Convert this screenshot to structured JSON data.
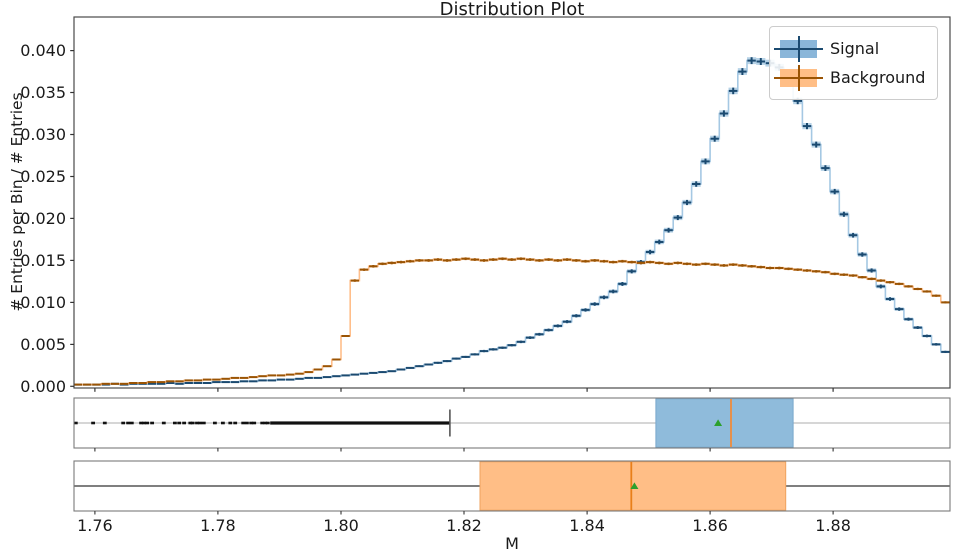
{
  "figure": {
    "title": "Distribution Plot",
    "xlabel": "M",
    "ylabel": "# Entries per Bin / # Entries"
  },
  "legend": {
    "items": [
      {
        "label": "Signal",
        "band_color": "#8ab6d9",
        "marker_color": "#1b4a70"
      },
      {
        "label": "Background",
        "band_color": "#ffbe86",
        "marker_color": "#9a5404"
      }
    ]
  },
  "style": {
    "spine_color": "#4a4a4a",
    "box_axes_border": "#7a7a7a",
    "tick_color": "#333333",
    "text_color": "#1a1a1a",
    "flier_color": "#111111",
    "cap_color": "#555555",
    "legend_border": "#cccccc"
  },
  "chart_data": [
    {
      "type": "histogram",
      "title": "Distribution Plot",
      "xlabel": "M",
      "ylabel": "# Entries per Bin / # Entries",
      "xlim": [
        1.7566,
        1.899
      ],
      "ylim": [
        -0.0002,
        0.044
      ],
      "grid": false,
      "legend_position": "upper right",
      "xticks": [
        1.76,
        1.78,
        1.8,
        1.82,
        1.84,
        1.86,
        1.88
      ],
      "xtick_labels": [
        "1.76",
        "1.78",
        "1.80",
        "1.82",
        "1.84",
        "1.86",
        "1.88"
      ],
      "yticks": [
        0.0,
        0.005,
        0.01,
        0.015,
        0.02,
        0.025,
        0.03,
        0.035,
        0.04
      ],
      "ytick_labels": [
        "0.000",
        "0.005",
        "0.010",
        "0.015",
        "0.020",
        "0.025",
        "0.030",
        "0.035",
        "0.040"
      ],
      "bin_start": 1.7565,
      "bin_width": 0.0015,
      "value_unit": 0.0001,
      "series": [
        {
          "name": "Signal",
          "line_color": "#a5c8e3",
          "band_color": "#1f77b4",
          "band_alpha": 0.32,
          "marker_color": "#1b4a70",
          "err_scale": 0.0021,
          "values": [
            2,
            2,
            2,
            2,
            3,
            2,
            3,
            3,
            3,
            3,
            4,
            3,
            4,
            4,
            4,
            5,
            5,
            5,
            6,
            6,
            7,
            7,
            8,
            8,
            9,
            10,
            10,
            11,
            12,
            13,
            14,
            15,
            16,
            17,
            18,
            20,
            22,
            24,
            26,
            28,
            30,
            33,
            35,
            38,
            42,
            44,
            46,
            49,
            53,
            58,
            62,
            67,
            72,
            77,
            84,
            91,
            98,
            106,
            113,
            122,
            137,
            148,
            160,
            172,
            186,
            201,
            219,
            241,
            268,
            295,
            325,
            352,
            375,
            388,
            387,
            385,
            380,
            362,
            340,
            310,
            288,
            260,
            232,
            205,
            180,
            157,
            138,
            119,
            104,
            92,
            80,
            70,
            60,
            50,
            41
          ]
        },
        {
          "name": "Background",
          "line_color": "#ffbe8a",
          "band_color": "#ff7f0e",
          "band_alpha": 0.3,
          "marker_color": "#9a5404",
          "err_scale": 0.0013,
          "values": [
            2,
            2,
            2,
            3,
            3,
            3,
            4,
            4,
            5,
            5,
            6,
            6,
            7,
            7,
            8,
            8,
            9,
            10,
            10,
            11,
            12,
            13,
            13,
            14,
            15,
            17,
            20,
            24,
            32,
            60,
            126,
            139,
            143,
            146,
            147,
            148,
            149,
            150,
            150,
            151,
            150,
            151,
            152,
            151,
            150,
            151,
            152,
            151,
            152,
            151,
            150,
            151,
            150,
            151,
            150,
            149,
            150,
            149,
            148,
            149,
            148,
            147,
            148,
            147,
            146,
            147,
            146,
            145,
            146,
            145,
            144,
            145,
            144,
            143,
            142,
            141,
            141,
            140,
            139,
            138,
            137,
            136,
            134,
            133,
            132,
            130,
            128,
            126,
            124,
            122,
            119,
            116,
            113,
            108,
            100
          ]
        }
      ]
    },
    {
      "type": "boxplot",
      "series_name": "Signal",
      "q1": 1.8512,
      "median": 1.8634,
      "q3": 1.8735,
      "mean": 1.8613,
      "whisker_low": 1.8177,
      "whisker_high_clipped": true,
      "whisker_color": "#c9c9c9",
      "box_fill": "#8fbbdb",
      "box_edge": "#79a8cc",
      "median_color": "#f08c3c",
      "mean_color": "#2ca02c",
      "fliers": [
        1.7569,
        1.7597,
        1.7616,
        1.7646,
        1.7654,
        1.766,
        1.7675,
        1.768,
        1.7685,
        1.7693,
        1.7712,
        1.773,
        1.7737,
        1.7745,
        1.7755,
        1.7759,
        1.7766,
        1.7771,
        1.7777,
        1.7795,
        1.7808,
        1.782,
        1.7828,
        1.7841,
        1.7847,
        1.7854,
        1.7859,
        1.7872,
        1.7877,
        1.7881
      ],
      "flier_dense_range": [
        1.7885,
        1.8177
      ]
    },
    {
      "type": "boxplot",
      "series_name": "Background",
      "q1": 1.8226,
      "median": 1.8472,
      "q3": 1.8723,
      "mean": 1.8477,
      "whisker_low_clipped": true,
      "whisker_high_clipped": true,
      "whisker_color": "#555555",
      "box_fill": "#ffbe86",
      "box_edge": "#efa35f",
      "median_color": "#e87f1a",
      "mean_color": "#2ca02c",
      "fliers": [],
      "flier_dense_range": null
    }
  ]
}
